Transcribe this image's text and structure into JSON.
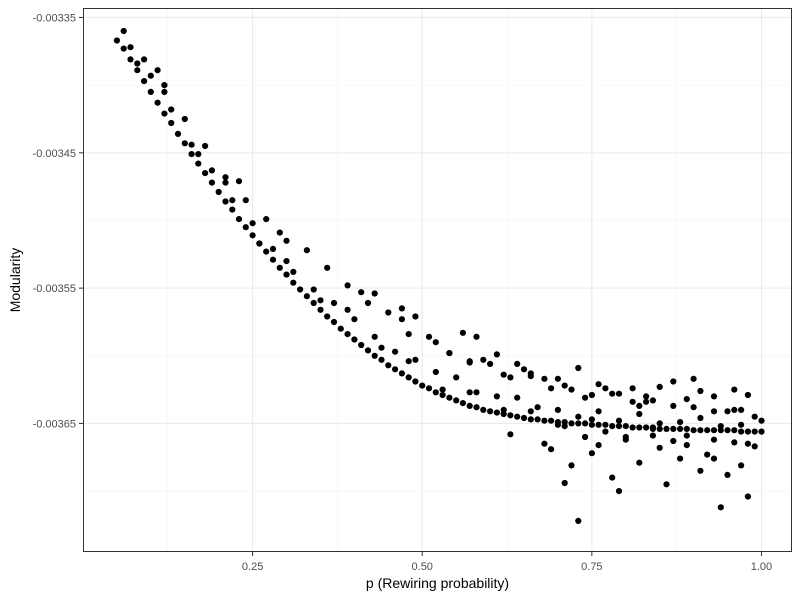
{
  "chart_data": {
    "type": "scatter",
    "title": "",
    "xlabel": "p (Rewiring probability)",
    "ylabel": "Modularity",
    "xlim": [
      0.0,
      1.045
    ],
    "ylim": [
      -0.003745,
      -0.003343
    ],
    "x_ticks": [
      0.25,
      0.5,
      0.75,
      1.0
    ],
    "x_tick_labels": [
      "0.25",
      "0.50",
      "0.75",
      "1.00"
    ],
    "y_ticks": [
      -0.00335,
      -0.00345,
      -0.00355,
      -0.00365
    ],
    "y_tick_labels": [
      "-0.00335",
      "-0.00345",
      "-0.00355",
      "-0.00365"
    ],
    "grid": true,
    "legend": "none",
    "theme": "bw",
    "point_color": "#000000",
    "series": [
      {
        "x": [
          0.05,
          0.06,
          0.07,
          0.08,
          0.09,
          0.1,
          0.11,
          0.12,
          0.13,
          0.14,
          0.15,
          0.16,
          0.17,
          0.18,
          0.19,
          0.2,
          0.21,
          0.22,
          0.23,
          0.24,
          0.25,
          0.26,
          0.27,
          0.28,
          0.29,
          0.3,
          0.31,
          0.32,
          0.33,
          0.34,
          0.35,
          0.36,
          0.37,
          0.38,
          0.39,
          0.4,
          0.41,
          0.42,
          0.43,
          0.44,
          0.45,
          0.46,
          0.47,
          0.48,
          0.49,
          0.5,
          0.51,
          0.52,
          0.53,
          0.54,
          0.55,
          0.56,
          0.57,
          0.58,
          0.59,
          0.6,
          0.61,
          0.62,
          0.63,
          0.64,
          0.65,
          0.66,
          0.67,
          0.68,
          0.69,
          0.7,
          0.71,
          0.72,
          0.73,
          0.74,
          0.75,
          0.76,
          0.77,
          0.78,
          0.79,
          0.8,
          0.81,
          0.82,
          0.83,
          0.84,
          0.85,
          0.86,
          0.87,
          0.88,
          0.89,
          0.9,
          0.91,
          0.92,
          0.93,
          0.94,
          0.95,
          0.96,
          0.97,
          0.98,
          0.99,
          1.0
        ],
        "y": [
          -0.003367,
          -0.003373,
          -0.003381,
          -0.003389,
          -0.003397,
          -0.003405,
          -0.003413,
          -0.003421,
          -0.003428,
          -0.003436,
          -0.003443,
          -0.003451,
          -0.003458,
          -0.003465,
          -0.003472,
          -0.003479,
          -0.003486,
          -0.003492,
          -0.003499,
          -0.003505,
          -0.003511,
          -0.003517,
          -0.003523,
          -0.003529,
          -0.003535,
          -0.00354,
          -0.003546,
          -0.003551,
          -0.003556,
          -0.003561,
          -0.003566,
          -0.003571,
          -0.003575,
          -0.00358,
          -0.003584,
          -0.003588,
          -0.003592,
          -0.003596,
          -0.0036,
          -0.003603,
          -0.003607,
          -0.00361,
          -0.003613,
          -0.003616,
          -0.003619,
          -0.003622,
          -0.003624,
          -0.003627,
          -0.003629,
          -0.003631,
          -0.003633,
          -0.003635,
          -0.003637,
          -0.003638,
          -0.00364,
          -0.003641,
          -0.003642,
          -0.003643,
          -0.003644,
          -0.003645,
          -0.003646,
          -0.003647,
          -0.003647,
          -0.003648,
          -0.003648,
          -0.003649,
          -0.003649,
          -0.00365,
          -0.00365,
          -0.00365,
          -0.003651,
          -0.003651,
          -0.003651,
          -0.003652,
          -0.003652,
          -0.003652,
          -0.003653,
          -0.003653,
          -0.003653,
          -0.003653,
          -0.003654,
          -0.003654,
          -0.003654,
          -0.003654,
          -0.003654,
          -0.003655,
          -0.003655,
          -0.003655,
          -0.003655,
          -0.003655,
          -0.003655,
          -0.003655,
          -0.003656,
          -0.003656,
          -0.003656,
          -0.003656
        ]
      },
      {
        "x": [
          0.07,
          0.1,
          0.13,
          0.16,
          0.19,
          0.22,
          0.25,
          0.28,
          0.31,
          0.34,
          0.37,
          0.4,
          0.43,
          0.46,
          0.49,
          0.52,
          0.55,
          0.58,
          0.61,
          0.64,
          0.67,
          0.7,
          0.73,
          0.76,
          0.79,
          0.82,
          0.85,
          0.88,
          0.91,
          0.94,
          0.97,
          1.0,
          0.08,
          0.12,
          0.17,
          0.21,
          0.26,
          0.3,
          0.35,
          0.39,
          0.44,
          0.48,
          0.53,
          0.57,
          0.62,
          0.66,
          0.71,
          0.75,
          0.8,
          0.84,
          0.89,
          0.93,
          0.98
        ],
        "y": [
          -0.003372,
          -0.003393,
          -0.003418,
          -0.003444,
          -0.003463,
          -0.003485,
          -0.003502,
          -0.003521,
          -0.003538,
          -0.003551,
          -0.003561,
          -0.003573,
          -0.003586,
          -0.003597,
          -0.003603,
          -0.003612,
          -0.003616,
          -0.003627,
          -0.00363,
          -0.003631,
          -0.003638,
          -0.00364,
          -0.003645,
          -0.003641,
          -0.003648,
          -0.003643,
          -0.00365,
          -0.003649,
          -0.003646,
          -0.003652,
          -0.003651,
          -0.003648,
          -0.003384,
          -0.003405,
          -0.003451,
          -0.003472,
          -0.003517,
          -0.00353,
          -0.003559,
          -0.003566,
          -0.003594,
          -0.003604,
          -0.003625,
          -0.003627,
          -0.00364,
          -0.003641,
          -0.003652,
          -0.003647,
          -0.00366,
          -0.003654,
          -0.003659,
          -0.003662,
          -0.003665
        ]
      },
      {
        "x": [
          0.06,
          0.09,
          0.12,
          0.15,
          0.18,
          0.21,
          0.24,
          0.27,
          0.3,
          0.33,
          0.36,
          0.39,
          0.42,
          0.45,
          0.48,
          0.51,
          0.54,
          0.57,
          0.6,
          0.63,
          0.66,
          0.69,
          0.72,
          0.75,
          0.78,
          0.81,
          0.84,
          0.87,
          0.9,
          0.93,
          0.96,
          0.99,
          0.11,
          0.23,
          0.29,
          0.41,
          0.47,
          0.59,
          0.65,
          0.71,
          0.77,
          0.83,
          0.95
        ],
        "y": [
          -0.00336,
          -0.003381,
          -0.0034,
          -0.003425,
          -0.003445,
          -0.003468,
          -0.003485,
          -0.003499,
          -0.003515,
          -0.003522,
          -0.003535,
          -0.003548,
          -0.003561,
          -0.003568,
          -0.003584,
          -0.003586,
          -0.003598,
          -0.003604,
          -0.003606,
          -0.003616,
          -0.003615,
          -0.003624,
          -0.003625,
          -0.003629,
          -0.003628,
          -0.003634,
          -0.003633,
          -0.003637,
          -0.003638,
          -0.003641,
          -0.00364,
          -0.003645,
          -0.003389,
          -0.003471,
          -0.003509,
          -0.003553,
          -0.003573,
          -0.003603,
          -0.00361,
          -0.003622,
          -0.003624,
          -0.00363,
          -0.003641
        ]
      },
      {
        "x": [
          0.73,
          0.79,
          0.72,
          0.86,
          0.94,
          0.98,
          0.78,
          0.91,
          0.69,
          0.82,
          0.95,
          0.75,
          0.88,
          0.97,
          0.76,
          0.71,
          0.85,
          0.92,
          0.96,
          0.8,
          0.89,
          0.63,
          0.68,
          0.74,
          0.87,
          0.99,
          0.93,
          0.7,
          0.84,
          0.77
        ],
        "y": [
          -0.003722,
          -0.0037,
          -0.003681,
          -0.003695,
          -0.003712,
          -0.003704,
          -0.00369,
          -0.003685,
          -0.003669,
          -0.003679,
          -0.003688,
          -0.003672,
          -0.003676,
          -0.003681,
          -0.003666,
          -0.003694,
          -0.003668,
          -0.003673,
          -0.003664,
          -0.003662,
          -0.003666,
          -0.003658,
          -0.003665,
          -0.00366,
          -0.003663,
          -0.003667,
          -0.003676,
          -0.003651,
          -0.003659,
          -0.003656
        ]
      },
      {
        "x": [
          0.49,
          0.52,
          0.56,
          0.61,
          0.68,
          0.73,
          0.81,
          0.87,
          0.9,
          0.96,
          0.58,
          0.64,
          0.7,
          0.79,
          0.85,
          0.93,
          0.54,
          0.66,
          0.76,
          0.83,
          0.91,
          0.98,
          0.43,
          0.47,
          0.57,
          0.62,
          0.74,
          0.82,
          0.89,
          0.97
        ],
        "y": [
          -0.003571,
          -0.00359,
          -0.003583,
          -0.003599,
          -0.003617,
          -0.003609,
          -0.003624,
          -0.003619,
          -0.003617,
          -0.003625,
          -0.003586,
          -0.003606,
          -0.003617,
          -0.003628,
          -0.003623,
          -0.00363,
          -0.003598,
          -0.003613,
          -0.003621,
          -0.003634,
          -0.003626,
          -0.003629,
          -0.003554,
          -0.003565,
          -0.003605,
          -0.003614,
          -0.003631,
          -0.003637,
          -0.003632,
          -0.00364
        ]
      }
    ]
  }
}
